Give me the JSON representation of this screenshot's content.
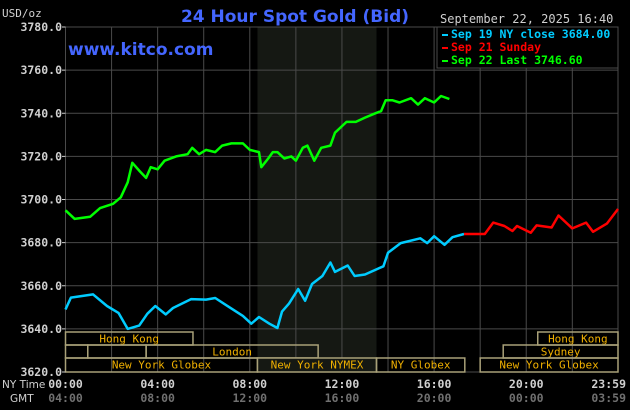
{
  "chart_data": {
    "type": "line",
    "title": "24 Hour Spot Gold (Bid)",
    "watermark": "www.kitco.com",
    "timestamp": "September 22, 2025 16:40",
    "ylabel": "USD/oz",
    "ylim": [
      3620,
      3780
    ],
    "yticks": [
      "3780.0",
      "3760.0",
      "3740.0",
      "3720.0",
      "3700.0",
      "3680.0",
      "3660.0",
      "3640.0",
      "3620.0"
    ],
    "xlim": [
      "00:00",
      "23:59"
    ],
    "x_axis_rows": [
      {
        "label": "NY Time",
        "ticks": [
          "00:00",
          "04:00",
          "08:00",
          "12:00",
          "16:00",
          "20:00",
          "23:59"
        ]
      },
      {
        "label": "GMT",
        "ticks": [
          "04:00",
          "08:00",
          "12:00",
          "16:00",
          "20:00",
          "00:00",
          "03:59"
        ]
      }
    ],
    "grid": true,
    "legend_position": "top-right",
    "highlight_band": {
      "start": "08:20",
      "end": "13:30",
      "color": "#151813"
    },
    "series": [
      {
        "name": "Sep 19 NY close 3684.00",
        "color": "#00ccff",
        "points": [
          [
            "00:00",
            3649
          ],
          [
            "00:14",
            3654.5
          ],
          [
            "01:12",
            3656
          ],
          [
            "01:48",
            3650.6
          ],
          [
            "02:18",
            3647.4
          ],
          [
            "02:42",
            3640
          ],
          [
            "03:12",
            3641.5
          ],
          [
            "03:33",
            3647
          ],
          [
            "03:54",
            3650.6
          ],
          [
            "04:21",
            3646.7
          ],
          [
            "04:40",
            3649.7
          ],
          [
            "05:27",
            3653.8
          ],
          [
            "06:06",
            3653.6
          ],
          [
            "06:30",
            3654.3
          ],
          [
            "07:00",
            3650.8
          ],
          [
            "07:42",
            3646
          ],
          [
            "08:04",
            3642.4
          ],
          [
            "08:24",
            3645.5
          ],
          [
            "08:51",
            3642.4
          ],
          [
            "09:12",
            3640.4
          ],
          [
            "09:24",
            3648
          ],
          [
            "09:42",
            3651.7
          ],
          [
            "10:06",
            3658.5
          ],
          [
            "10:24",
            3653
          ],
          [
            "10:42",
            3660.8
          ],
          [
            "11:09",
            3664.5
          ],
          [
            "11:30",
            3670.8
          ],
          [
            "11:42",
            3666.4
          ],
          [
            "12:15",
            3669.4
          ],
          [
            "12:33",
            3664.5
          ],
          [
            "13:00",
            3665.2
          ],
          [
            "13:48",
            3669
          ],
          [
            "14:00",
            3675.3
          ],
          [
            "14:33",
            3679.8
          ],
          [
            "15:24",
            3682
          ],
          [
            "15:42",
            3679.8
          ],
          [
            "16:00",
            3683
          ],
          [
            "16:27",
            3679
          ],
          [
            "16:48",
            3682.5
          ],
          [
            "17:18",
            3684
          ]
        ]
      },
      {
        "name": "Sep 21 Sunday",
        "color": "#ff0000",
        "points": [
          [
            "17:18",
            3684
          ],
          [
            "18:12",
            3684
          ],
          [
            "18:34",
            3689.3
          ],
          [
            "19:03",
            3687.7
          ],
          [
            "19:24",
            3685.4
          ],
          [
            "19:36",
            3687.7
          ],
          [
            "20:12",
            3684.6
          ],
          [
            "20:27",
            3688
          ],
          [
            "21:06",
            3687
          ],
          [
            "21:24",
            3692.6
          ],
          [
            "22:00",
            3686.6
          ],
          [
            "22:36",
            3689.3
          ],
          [
            "22:54",
            3685
          ],
          [
            "23:30",
            3688.8
          ],
          [
            "23:59",
            3695.6
          ]
        ]
      },
      {
        "name": "Sep 22 Last 3746.60",
        "color": "#00ff00",
        "points": [
          [
            "00:00",
            3695
          ],
          [
            "00:24",
            3691
          ],
          [
            "01:04",
            3692
          ],
          [
            "01:30",
            3696
          ],
          [
            "02:04",
            3698
          ],
          [
            "02:24",
            3701
          ],
          [
            "02:42",
            3708
          ],
          [
            "02:54",
            3717
          ],
          [
            "03:14",
            3713
          ],
          [
            "03:30",
            3710
          ],
          [
            "03:42",
            3715
          ],
          [
            "04:00",
            3714
          ],
          [
            "04:18",
            3718
          ],
          [
            "04:48",
            3720
          ],
          [
            "05:18",
            3721
          ],
          [
            "05:30",
            3724
          ],
          [
            "05:48",
            3721
          ],
          [
            "06:06",
            3723
          ],
          [
            "06:30",
            3722
          ],
          [
            "06:48",
            3725
          ],
          [
            "07:12",
            3726
          ],
          [
            "07:42",
            3726
          ],
          [
            "08:00",
            3723
          ],
          [
            "08:24",
            3722
          ],
          [
            "08:30",
            3715
          ],
          [
            "08:48",
            3719
          ],
          [
            "09:00",
            3722
          ],
          [
            "09:12",
            3722
          ],
          [
            "09:30",
            3719
          ],
          [
            "09:48",
            3720
          ],
          [
            "10:00",
            3718
          ],
          [
            "10:18",
            3724
          ],
          [
            "10:30",
            3725
          ],
          [
            "10:48",
            3718
          ],
          [
            "11:06",
            3724
          ],
          [
            "11:30",
            3725
          ],
          [
            "11:42",
            3731
          ],
          [
            "12:12",
            3736
          ],
          [
            "12:36",
            3736
          ],
          [
            "13:00",
            3738
          ],
          [
            "13:27",
            3740
          ],
          [
            "13:42",
            3741
          ],
          [
            "13:54",
            3746
          ],
          [
            "14:12",
            3746
          ],
          [
            "14:30",
            3745
          ],
          [
            "15:00",
            3747
          ],
          [
            "15:18",
            3744
          ],
          [
            "15:36",
            3747
          ],
          [
            "16:00",
            3745
          ],
          [
            "16:18",
            3748
          ],
          [
            "16:40",
            3746.6
          ]
        ]
      }
    ],
    "sessions": [
      {
        "row": 0,
        "label": "Hong Kong",
        "start": "00:00",
        "end": "05:32"
      },
      {
        "row": 0,
        "label": "Hong Kong",
        "start": "20:30",
        "end": "23:59"
      },
      {
        "row": 1,
        "label": "",
        "start": "00:00",
        "end": "00:58"
      },
      {
        "row": 1,
        "label": "",
        "start": "00:58",
        "end": "03:30"
      },
      {
        "row": 1,
        "label": "London",
        "start": "03:30",
        "end": "10:58"
      },
      {
        "row": 1,
        "label": "Sydney",
        "start": "19:00",
        "end": "23:59"
      },
      {
        "row": 2,
        "label": "New York Globex",
        "start": "00:00",
        "end": "08:20"
      },
      {
        "row": 2,
        "label": "New York NYMEX",
        "start": "08:20",
        "end": "13:30"
      },
      {
        "row": 2,
        "label": "NY Globex",
        "start": "13:30",
        "end": "17:20"
      },
      {
        "row": 2,
        "label": "New York Globex",
        "start": "18:00",
        "end": "23:59"
      }
    ]
  },
  "colors": {
    "title": "#4466ff",
    "watermark": "#4466ff",
    "session_text": "#f0b000",
    "session_border": "#a8a078",
    "grid": "#4a4a4a",
    "axis_text": "#d0d0d0",
    "gmt_text": "#707070"
  }
}
